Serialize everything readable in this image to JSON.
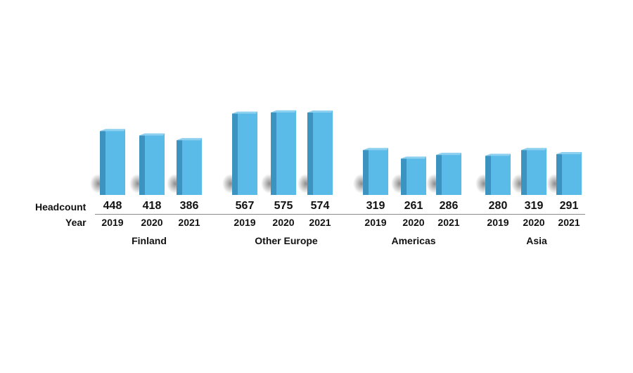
{
  "row_labels": {
    "headcount": "Headcount",
    "year": "Year"
  },
  "colors": {
    "bar_front": "#5bbbe8",
    "bar_side": "#3c93bf",
    "bar_top": "#8dd0f0",
    "baseline": "#8a8a8a"
  },
  "chart_data": {
    "type": "bar",
    "groups": [
      {
        "region": "Finland",
        "bars": [
          {
            "year": "2019",
            "value": 448
          },
          {
            "year": "2020",
            "value": 418
          },
          {
            "year": "2021",
            "value": 386
          }
        ]
      },
      {
        "region": "Other Europe",
        "bars": [
          {
            "year": "2019",
            "value": 567
          },
          {
            "year": "2020",
            "value": 575
          },
          {
            "year": "2021",
            "value": 574
          }
        ]
      },
      {
        "region": "Americas",
        "bars": [
          {
            "year": "2019",
            "value": 319
          },
          {
            "year": "2020",
            "value": 261
          },
          {
            "year": "2021",
            "value": 286
          }
        ]
      },
      {
        "region": "Asia",
        "bars": [
          {
            "year": "2019",
            "value": 280
          },
          {
            "year": "2020",
            "value": 319
          },
          {
            "year": "2021",
            "value": 291
          }
        ]
      }
    ]
  }
}
